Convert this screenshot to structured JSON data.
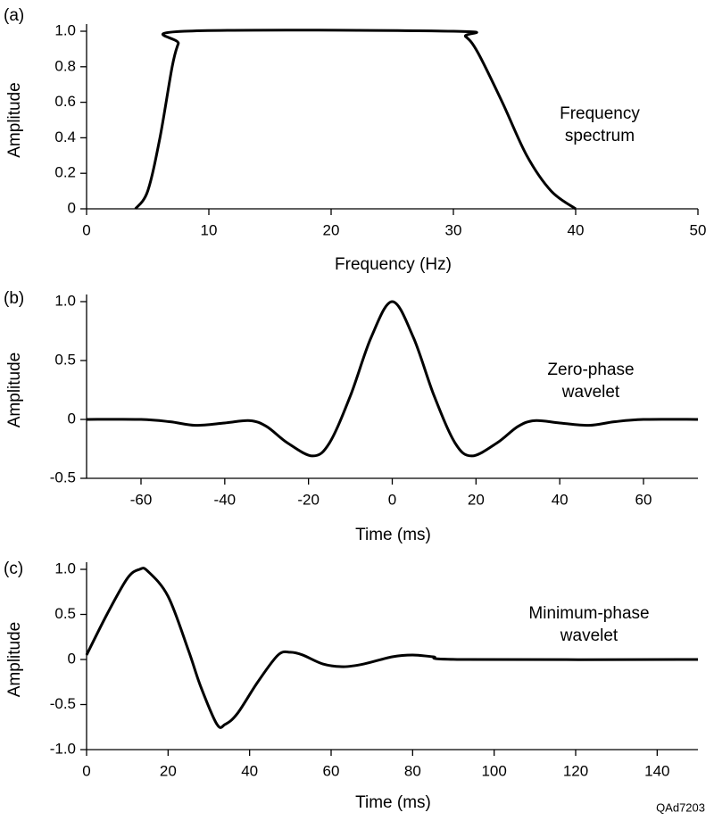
{
  "chart_data": [
    {
      "type": "line",
      "panel_label": "(a)",
      "annotation": [
        "Frequency",
        "spectrum"
      ],
      "x_label": "Frequency (Hz)",
      "y_label": "Amplitude",
      "x": [
        4,
        5,
        6,
        7,
        7.5,
        8,
        30,
        31,
        32,
        34,
        36,
        38,
        40
      ],
      "values": [
        0,
        0.1,
        0.4,
        0.8,
        0.93,
        1,
        1,
        0.97,
        0.88,
        0.6,
        0.3,
        0.1,
        0
      ],
      "color": "#000000",
      "xlim": [
        0,
        50
      ],
      "xticks": [
        0,
        10,
        20,
        30,
        40,
        50
      ],
      "ylim": [
        0,
        1
      ],
      "yticks": [
        0,
        0.2,
        0.4,
        0.6,
        0.8,
        {
          "value": 1,
          "label": "1.0"
        }
      ]
    },
    {
      "type": "line",
      "panel_label": "(b)",
      "annotation": [
        "Zero-phase",
        "wavelet"
      ],
      "x_label": "Time (ms)",
      "y_label": "Amplitude",
      "x": [
        -73,
        -60,
        -53,
        -47,
        -40,
        -34,
        -30,
        -25,
        -19,
        -15,
        -10,
        -5,
        0,
        5,
        10,
        15,
        19,
        25,
        30,
        34,
        40,
        47,
        53,
        60,
        73
      ],
      "values": [
        0,
        0,
        -0.02,
        -0.05,
        -0.03,
        -0.01,
        -0.06,
        -0.2,
        -0.31,
        -0.2,
        0.2,
        0.7,
        1.0,
        0.7,
        0.2,
        -0.2,
        -0.31,
        -0.2,
        -0.06,
        -0.01,
        -0.03,
        -0.05,
        -0.02,
        0,
        0
      ],
      "color": "#000000",
      "xlim": [
        -73,
        73
      ],
      "xticks": [
        -60,
        -40,
        -20,
        0,
        20,
        40,
        60
      ],
      "ylim": [
        -0.5,
        1
      ],
      "yticks": [
        -0.5,
        0,
        0.5,
        {
          "value": 1,
          "label": "1.0"
        }
      ]
    },
    {
      "type": "line",
      "panel_label": "(c)",
      "annotation": [
        "Minimum-phase",
        "wavelet"
      ],
      "x_label": "Time (ms)",
      "y_label": "Amplitude",
      "x": [
        0,
        5,
        10,
        13,
        15,
        20,
        25,
        28,
        32,
        34,
        37,
        42,
        47,
        50,
        53,
        58,
        63,
        68,
        75,
        80,
        85,
        92,
        150
      ],
      "values": [
        0.05,
        0.5,
        0.9,
        1.0,
        0.98,
        0.7,
        0.1,
        -0.3,
        -0.72,
        -0.72,
        -0.6,
        -0.25,
        0.05,
        0.08,
        0.05,
        -0.05,
        -0.08,
        -0.05,
        0.03,
        0.05,
        0.03,
        0,
        0
      ],
      "color": "#000000",
      "xlim": [
        0,
        150
      ],
      "xticks": [
        0,
        20,
        40,
        60,
        80,
        100,
        120,
        140
      ],
      "ylim": [
        -1,
        1
      ],
      "yticks": [
        {
          "value": -1,
          "label": "-1.0"
        },
        -0.5,
        0,
        0.5,
        {
          "value": 1,
          "label": "1.0"
        }
      ]
    }
  ],
  "footer_code": "QAd7203"
}
